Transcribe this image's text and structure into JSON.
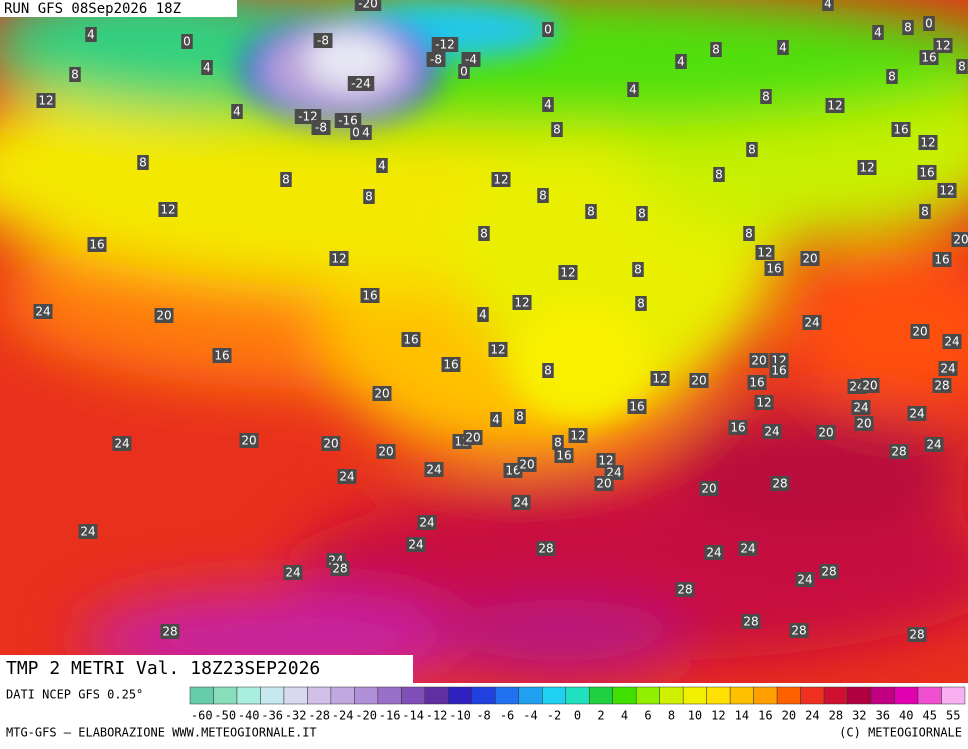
{
  "header": {
    "run": "RUN GFS 08Sep2026 18Z"
  },
  "title": "TMP 2 METRI Val. 18Z23SEP2026",
  "source": "DATI NCEP GFS 0.25°",
  "credit_left": "MTG-GFS — ELABORAZIONE WWW.METEOGIORNALE.IT",
  "credit_right": "(C) METEOGIORNALE",
  "isotherm_labels": [
    -20,
    4,
    0,
    -8,
    -12,
    -8,
    -4,
    0,
    0,
    4,
    4,
    8,
    0,
    12,
    16,
    8,
    8,
    4,
    4,
    4,
    8,
    -24,
    12,
    4,
    -12,
    -8,
    -16,
    0,
    4,
    4,
    4,
    8,
    12,
    8,
    16,
    12,
    8,
    8,
    8,
    4,
    8,
    8,
    8,
    12,
    16,
    12,
    12,
    8,
    8,
    8,
    8,
    12,
    16,
    12,
    8,
    8,
    12,
    16,
    20,
    16,
    20,
    12,
    8,
    16,
    12,
    8,
    24,
    20,
    16,
    4,
    24,
    20,
    24,
    16,
    12,
    16,
    8,
    20,
    12,
    16,
    12,
    20,
    16,
    24,
    20,
    28,
    24,
    20,
    12,
    16,
    24,
    24,
    8,
    4,
    16,
    24,
    20,
    20,
    24,
    24,
    20,
    20,
    12,
    20,
    12,
    8,
    16,
    20,
    28,
    12,
    24,
    16,
    20,
    24,
    24,
    20,
    28,
    20,
    24,
    24,
    24,
    28,
    24,
    24,
    24,
    24,
    28,
    24,
    28,
    24,
    28,
    28,
    28,
    28,
    28
  ],
  "colorbar": {
    "ticks": [
      -60,
      -50,
      -40,
      -36,
      -32,
      -28,
      -24,
      -20,
      -16,
      -14,
      -12,
      -10,
      -8,
      -6,
      -4,
      -2,
      0,
      2,
      4,
      6,
      8,
      10,
      12,
      14,
      16,
      20,
      24,
      28,
      32,
      36,
      40,
      45,
      55
    ],
    "colors": [
      "#66ccaa",
      "#88ddbb",
      "#aaeedd",
      "#c8e8f0",
      "#d8d8f0",
      "#d0c0e8",
      "#c0a8e0",
      "#b090d8",
      "#9870c8",
      "#8050b8",
      "#6030a0",
      "#3020c0",
      "#2040e0",
      "#2070f0",
      "#20a0f0",
      "#20d0f0",
      "#20e0c0",
      "#20d040",
      "#40e000",
      "#90f000",
      "#d0f000",
      "#f0f000",
      "#ffe000",
      "#ffc000",
      "#ffa000",
      "#ff6000",
      "#f03020",
      "#d01030",
      "#b00040",
      "#c00080",
      "#e000b0",
      "#f050d0",
      "#f8b0f0"
    ]
  }
}
